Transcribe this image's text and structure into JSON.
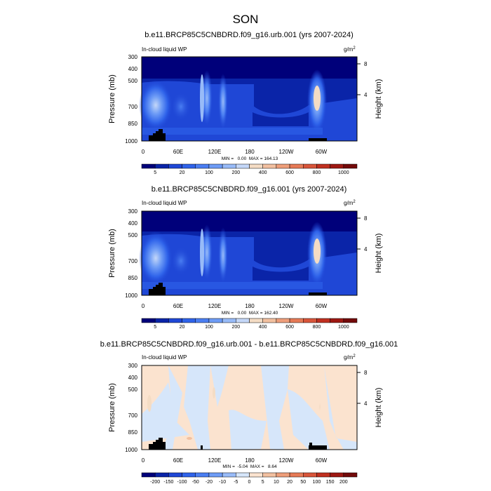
{
  "page": {
    "title": "SON"
  },
  "chart_data": [
    {
      "type": "heatmap",
      "title": "b.e11.BRCP85C5CNBDRD.f09_g16.urb.001 (yrs 2007-2024)",
      "variable": "In-cloud liquid WP",
      "units": "g/m",
      "units_exp": "2",
      "ylabel": "Pressure (mb)",
      "ylabel_right": "Height (km)",
      "x_ticks": [
        "0",
        "60E",
        "120E",
        "180",
        "120W",
        "60W"
      ],
      "y_ticks": [
        "300",
        "400",
        "500",
        "700",
        "850",
        "1000"
      ],
      "y_ticks_right": [
        "8",
        "4"
      ],
      "stats": "MIN =   0.00  MAX = 164.13",
      "colorbar": {
        "labels": [
          "5",
          "20",
          "100",
          "200",
          "400",
          "600",
          "800",
          "1000"
        ],
        "colors": [
          "#00007a",
          "#0a24a8",
          "#1f47d6",
          "#2f63ea",
          "#4a7ef2",
          "#6e9cf6",
          "#98bbf8",
          "#c4d7f8",
          "#f4dcc4",
          "#f2c0a0",
          "#ee9e7a",
          "#e67a56",
          "#d8553a",
          "#c03020",
          "#9e1812",
          "#730a0a"
        ]
      }
    },
    {
      "type": "heatmap",
      "title": "b.e11.BRCP85C5CNBDRD.f09_g16.001 (yrs 2007-2024)",
      "variable": "In-cloud liquid WP",
      "units": "g/m",
      "units_exp": "2",
      "ylabel": "Pressure (mb)",
      "ylabel_right": "Height (km)",
      "x_ticks": [
        "0",
        "60E",
        "120E",
        "180",
        "120W",
        "60W"
      ],
      "y_ticks": [
        "300",
        "400",
        "500",
        "700",
        "850",
        "1000"
      ],
      "y_ticks_right": [
        "8",
        "4"
      ],
      "stats": "MIN =   0.00  MAX = 162.40",
      "colorbar": {
        "labels": [
          "5",
          "20",
          "100",
          "200",
          "400",
          "600",
          "800",
          "1000"
        ],
        "colors": [
          "#00007a",
          "#0a24a8",
          "#1f47d6",
          "#2f63ea",
          "#4a7ef2",
          "#6e9cf6",
          "#98bbf8",
          "#c4d7f8",
          "#f4dcc4",
          "#f2c0a0",
          "#ee9e7a",
          "#e67a56",
          "#d8553a",
          "#c03020",
          "#9e1812",
          "#730a0a"
        ]
      }
    },
    {
      "type": "heatmap",
      "title": "b.e11.BRCP85C5CNBDRD.f09_g16.urb.001 - b.e11.BRCP85C5CNBDRD.f09_g16.001",
      "variable": "In-cloud liquid WP",
      "units": "g/m",
      "units_exp": "2",
      "ylabel": "Pressure (mb)",
      "ylabel_right": "Height (km)",
      "x_ticks": [
        "0",
        "60E",
        "120E",
        "180",
        "120W",
        "60W"
      ],
      "y_ticks": [
        "300",
        "400",
        "500",
        "700",
        "850",
        "1000"
      ],
      "y_ticks_right": [
        "8",
        "4"
      ],
      "stats": "MIN =  -5.04  MAX =   8.64",
      "colorbar": {
        "labels": [
          "-200",
          "-150",
          "-100",
          "-50",
          "-20",
          "-10",
          "-5",
          "0",
          "5",
          "10",
          "20",
          "50",
          "100",
          "150",
          "200"
        ],
        "colors": [
          "#00007a",
          "#0a24a8",
          "#1f47d6",
          "#2f63ea",
          "#4a7ef2",
          "#6e9cf6",
          "#98bbf8",
          "#d6e6fa",
          "#fbe3cf",
          "#f2c0a0",
          "#ee9e7a",
          "#e67a56",
          "#d8553a",
          "#c03020",
          "#9e1812",
          "#730a0a"
        ]
      }
    }
  ]
}
